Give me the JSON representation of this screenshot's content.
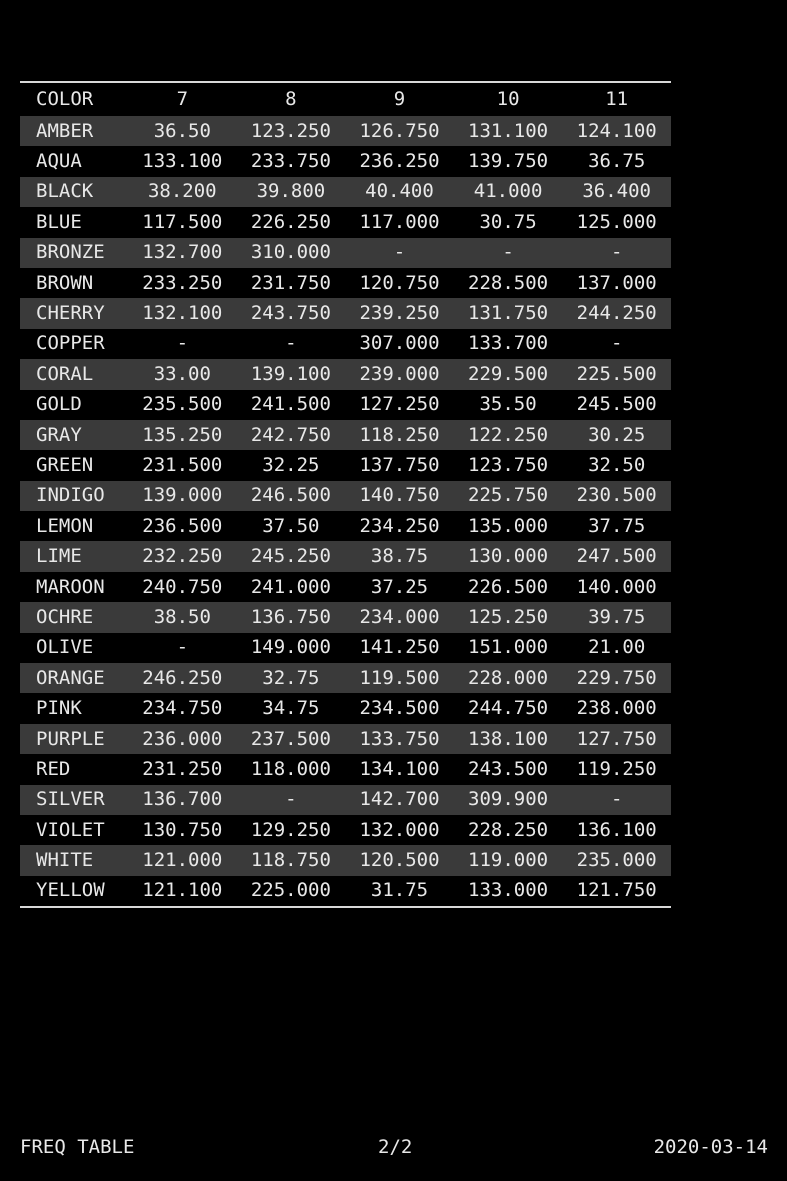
{
  "table": {
    "headers": [
      "COLOR",
      "7",
      "8",
      "9",
      "10",
      "11"
    ],
    "rows": [
      [
        "AMBER",
        "36.50",
        "123.250",
        "126.750",
        "131.100",
        "124.100"
      ],
      [
        "AQUA",
        "133.100",
        "233.750",
        "236.250",
        "139.750",
        "36.75"
      ],
      [
        "BLACK",
        "38.200",
        "39.800",
        "40.400",
        "41.000",
        "36.400"
      ],
      [
        "BLUE",
        "117.500",
        "226.250",
        "117.000",
        "30.75",
        "125.000"
      ],
      [
        "BRONZE",
        "132.700",
        "310.000",
        "-",
        "-",
        "-"
      ],
      [
        "BROWN",
        "233.250",
        "231.750",
        "120.750",
        "228.500",
        "137.000"
      ],
      [
        "CHERRY",
        "132.100",
        "243.750",
        "239.250",
        "131.750",
        "244.250"
      ],
      [
        "COPPER",
        "-",
        "-",
        "307.000",
        "133.700",
        "-"
      ],
      [
        "CORAL",
        "33.00",
        "139.100",
        "239.000",
        "229.500",
        "225.500"
      ],
      [
        "GOLD",
        "235.500",
        "241.500",
        "127.250",
        "35.50",
        "245.500"
      ],
      [
        "GRAY",
        "135.250",
        "242.750",
        "118.250",
        "122.250",
        "30.25"
      ],
      [
        "GREEN",
        "231.500",
        "32.25",
        "137.750",
        "123.750",
        "32.50"
      ],
      [
        "INDIGO",
        "139.000",
        "246.500",
        "140.750",
        "225.750",
        "230.500"
      ],
      [
        "LEMON",
        "236.500",
        "37.50",
        "234.250",
        "135.000",
        "37.75"
      ],
      [
        "LIME",
        "232.250",
        "245.250",
        "38.75",
        "130.000",
        "247.500"
      ],
      [
        "MAROON",
        "240.750",
        "241.000",
        "37.25",
        "226.500",
        "140.000"
      ],
      [
        "OCHRE",
        "38.50",
        "136.750",
        "234.000",
        "125.250",
        "39.75"
      ],
      [
        "OLIVE",
        "-",
        "149.000",
        "141.250",
        "151.000",
        "21.00"
      ],
      [
        "ORANGE",
        "246.250",
        "32.75",
        "119.500",
        "228.000",
        "229.750"
      ],
      [
        "PINK",
        "234.750",
        "34.75",
        "234.500",
        "244.750",
        "238.000"
      ],
      [
        "PURPLE",
        "236.000",
        "237.500",
        "133.750",
        "138.100",
        "127.750"
      ],
      [
        "RED",
        "231.250",
        "118.000",
        "134.100",
        "243.500",
        "119.250"
      ],
      [
        "SILVER",
        "136.700",
        "-",
        "142.700",
        "309.900",
        "-"
      ],
      [
        "VIOLET",
        "130.750",
        "129.250",
        "132.000",
        "228.250",
        "136.100"
      ],
      [
        "WHITE",
        "121.000",
        "118.750",
        "120.500",
        "119.000",
        "235.000"
      ],
      [
        "YELLOW",
        "121.100",
        "225.000",
        "31.75",
        "133.000",
        "121.750"
      ]
    ]
  },
  "footer": {
    "title": "FREQ TABLE",
    "page": "2/2",
    "date": "2020-03-14"
  },
  "colors": {
    "background": "#000000",
    "stripe": "#3a3a3a",
    "text": "#e8e8e8",
    "rule": "#d8d8d8"
  }
}
